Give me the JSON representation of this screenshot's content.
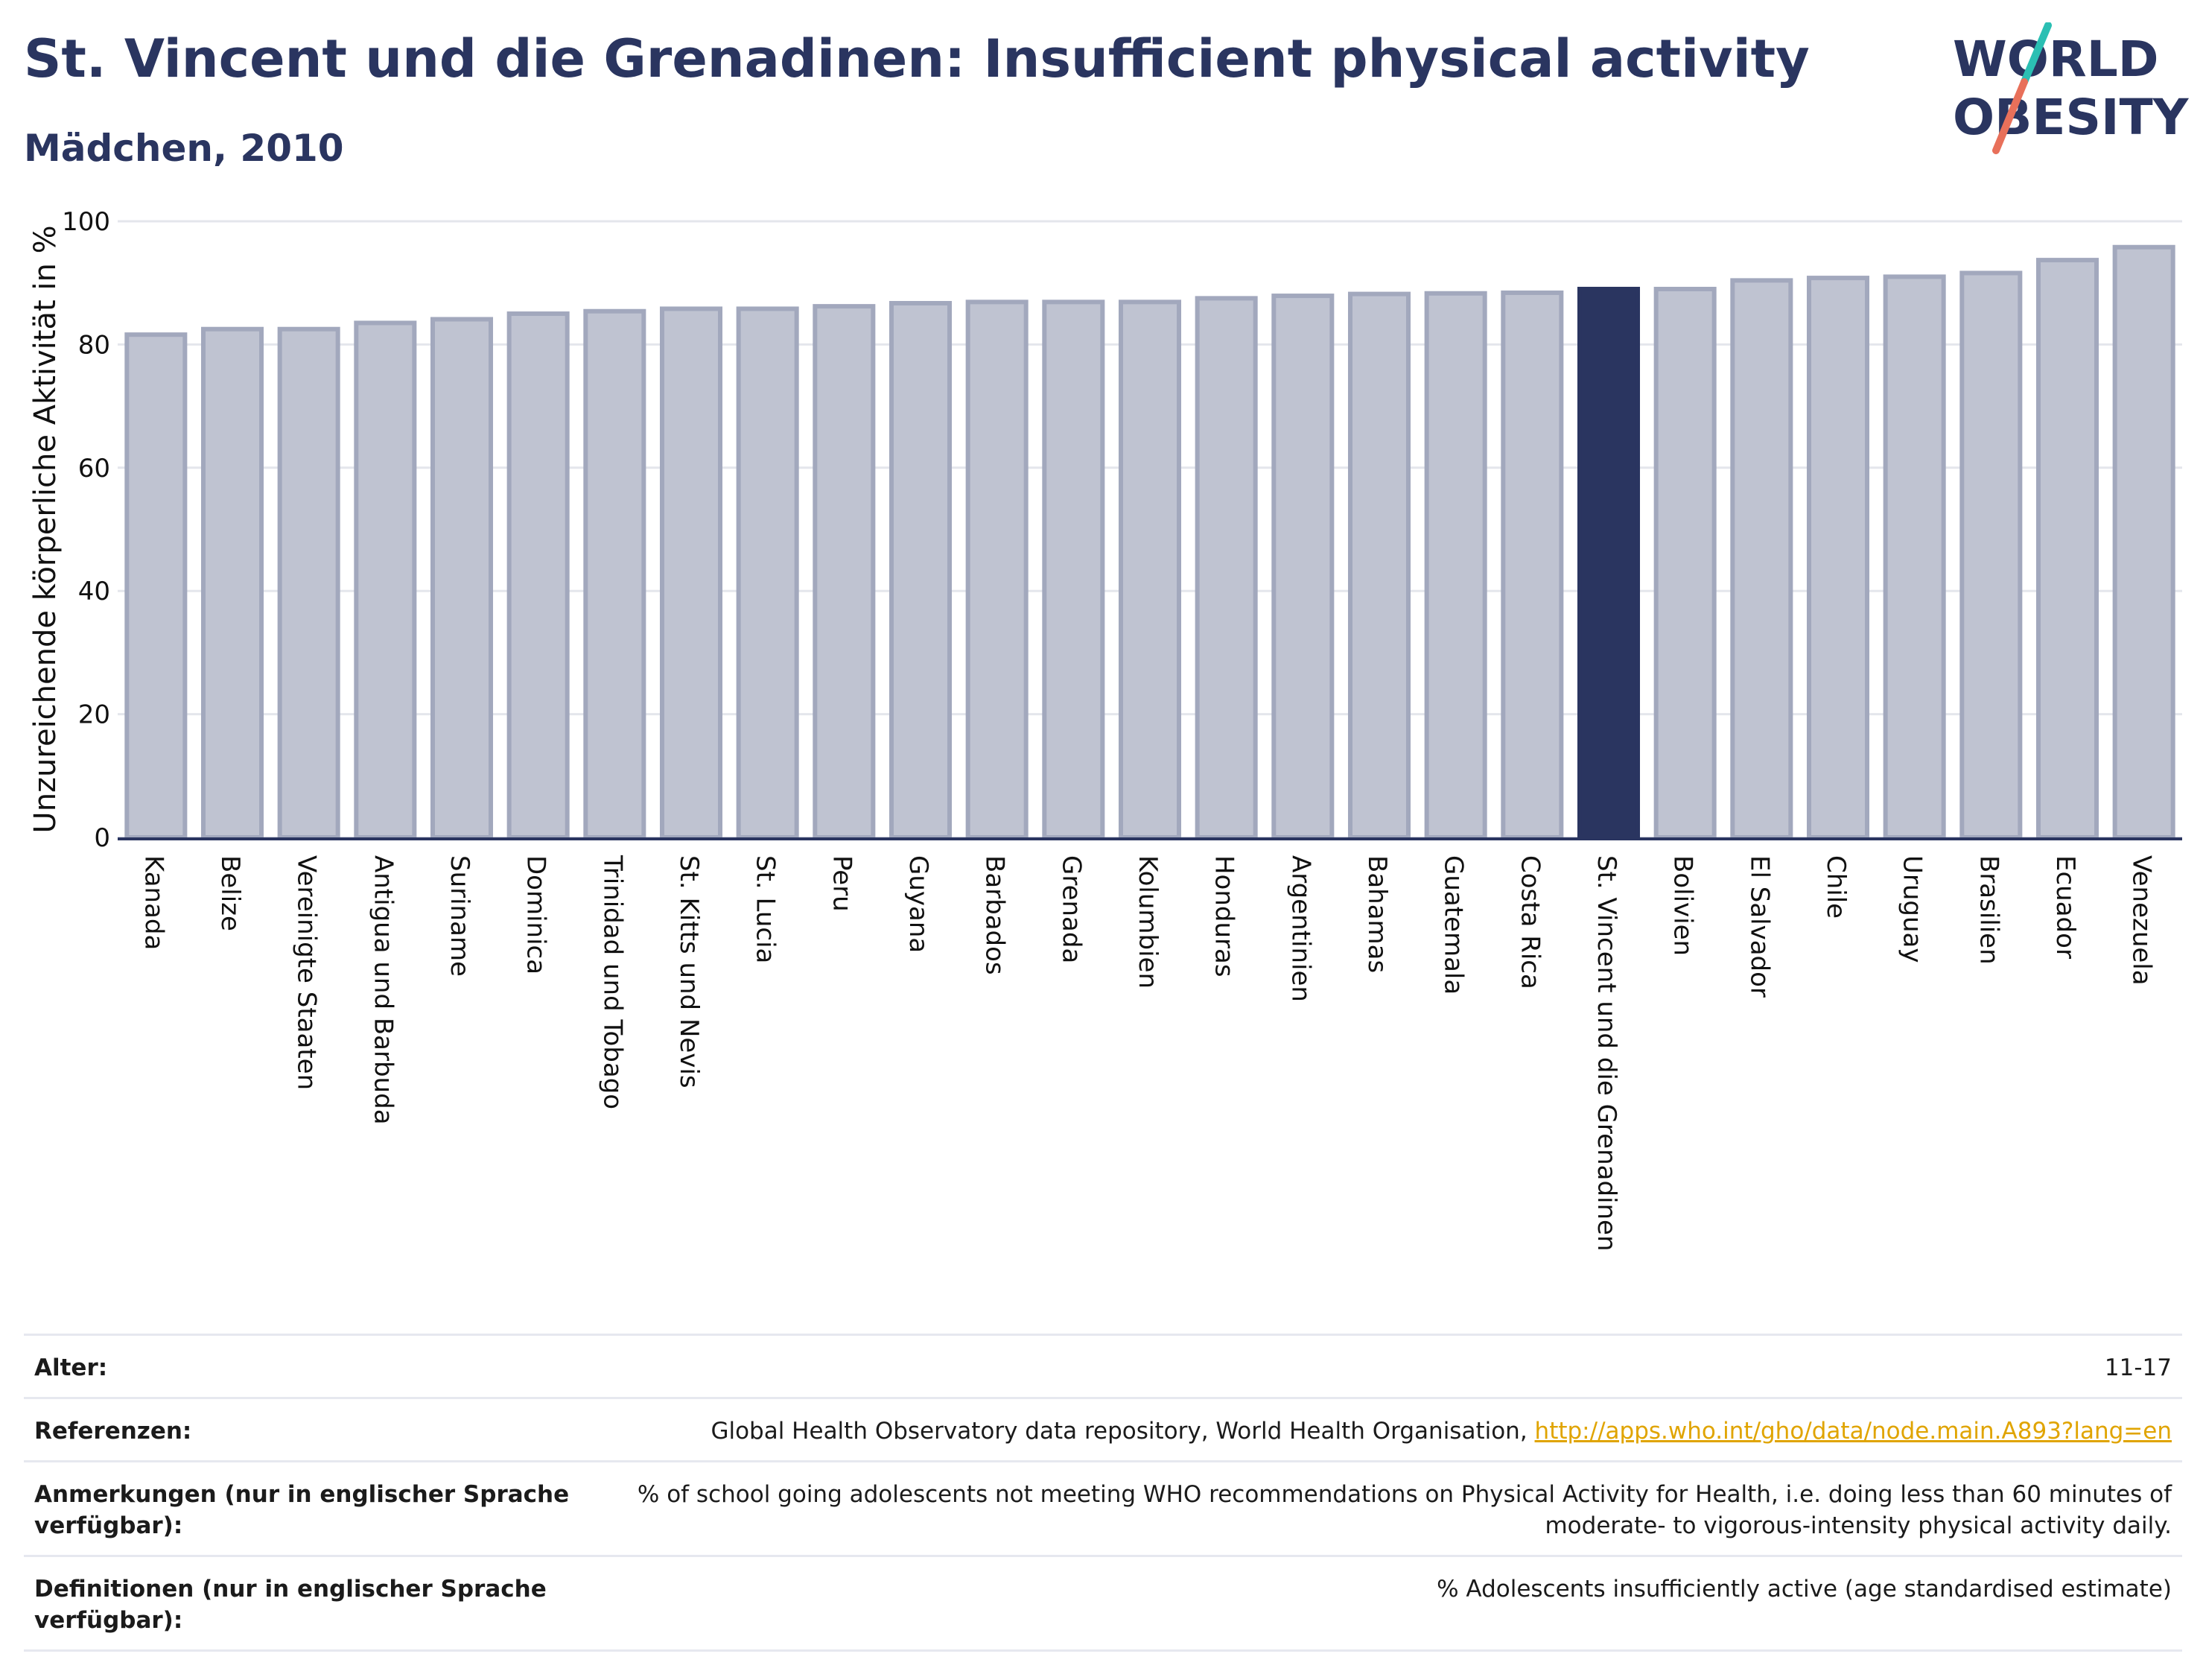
{
  "header": {
    "title": "St. Vincent und die Grenadinen: Insufficient physical activity",
    "subtitle": "Mädchen, 2010",
    "logo": {
      "line1": "WORLD",
      "line2": "OBESITY",
      "colors": {
        "text": "#2a3560",
        "slash_top": "#2bbfb3",
        "slash_bottom": "#e8705a"
      }
    }
  },
  "colors": {
    "bar": "#bfc3d1",
    "bar_stroke": "#a2a8bd",
    "highlight": "#2a3560",
    "grid": "#e4e6ec",
    "axis": "#2a3560"
  },
  "chart_data": {
    "type": "bar",
    "title": "St. Vincent und die Grenadinen: Insufficient physical activity",
    "subtitle": "Mädchen, 2010",
    "xlabel": "",
    "ylabel": "Unzureichende körperliche Aktivität in %",
    "ylim": [
      0,
      100
    ],
    "yticks": [
      0,
      20,
      40,
      60,
      80,
      100
    ],
    "grid": true,
    "highlight": "St. Vincent und die Grenadinen",
    "categories": [
      "Kanada",
      "Belize",
      "Vereinigte Staaten",
      "Antigua und Barbuda",
      "Suriname",
      "Dominica",
      "Trinidad und Tobago",
      "St. Kitts und Nevis",
      "St. Lucia",
      "Peru",
      "Guyana",
      "Barbados",
      "Grenada",
      "Kolumbien",
      "Honduras",
      "Argentinien",
      "Bahamas",
      "Guatemala",
      "Costa Rica",
      "St. Vincent und die Grenadinen",
      "Bolivien",
      "El Salvador",
      "Chile",
      "Uruguay",
      "Brasilien",
      "Ecuador",
      "Venezuela"
    ],
    "values": [
      81.6,
      82.5,
      82.5,
      83.5,
      84.1,
      85.0,
      85.4,
      85.8,
      85.8,
      86.2,
      86.7,
      86.9,
      86.9,
      86.9,
      87.5,
      87.9,
      88.2,
      88.3,
      88.4,
      89.0,
      89.0,
      90.4,
      90.8,
      91.0,
      91.6,
      93.7,
      95.8
    ]
  },
  "info": [
    {
      "key": "Alter:",
      "value": "11-17",
      "link": ""
    },
    {
      "key": "Referenzen:",
      "value": "Global Health Observatory data repository, World Health Organisation, ",
      "link": "http://apps.who.int/gho/data/node.main.A893?lang=en"
    },
    {
      "key": "Anmerkungen (nur in englischer Sprache verfügbar):",
      "value": "% of school going adolescents not meeting WHO recommendations on Physical Activity for Health, i.e. doing less than 60 minutes of moderate- to vigorous-intensity physical activity daily.",
      "link": ""
    },
    {
      "key": "Definitionen (nur in englischer Sprache verfügbar):",
      "value": "% Adolescents insufficiently active (age standardised estimate)",
      "link": ""
    }
  ]
}
